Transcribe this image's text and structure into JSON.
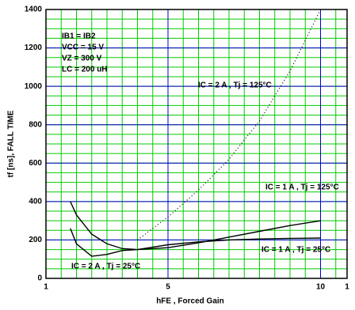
{
  "chart_data": {
    "type": "line",
    "x_label": "hFE , Forced Gain",
    "y_label": "tf [ns], FALL TIME",
    "x": [
      1.8,
      2,
      2.5,
      3,
      3.5,
      4,
      5,
      6,
      7,
      8,
      9,
      10
    ],
    "series": [
      {
        "color": "#000000",
        "style": "dotted",
        "values": [
          null,
          null,
          null,
          null,
          null,
          200,
          320,
          460,
          620,
          820,
          1080,
          1400
        ]
      },
      {
        "color": "#000000",
        "style": "solid",
        "values": [
          400,
          330,
          230,
          180,
          155,
          150,
          160,
          185,
          215,
          245,
          275,
          300
        ]
      },
      {
        "color": "#000000",
        "style": "solid",
        "values": [
          260,
          180,
          115,
          125,
          145,
          150,
          175,
          190,
          200,
          205,
          208,
          210
        ]
      }
    ],
    "conditions": [
      "IB1 = IB2",
      "VCC = 15 V",
      "VZ = 300 V",
      "LC = 200 uH"
    ],
    "annotations": [
      "IC = 2 A , Tj = 125°C",
      "IC = 1 A , Tj = 125°C",
      "IC = 1 A , Tj = 25°C",
      "IC = 2 A , Tj = 25°C"
    ],
    "xlim": [
      1,
      11
    ],
    "xticks": [
      1,
      5,
      10,
      {
        "value": 11,
        "label": "1"
      }
    ],
    "ylim": [
      0,
      1400
    ],
    "yticks": [
      0,
      200,
      400,
      600,
      800,
      1000,
      1200,
      1400
    ],
    "grid": true,
    "grid_color": "#00cc00",
    "major_grid_color": "#0000cc"
  }
}
